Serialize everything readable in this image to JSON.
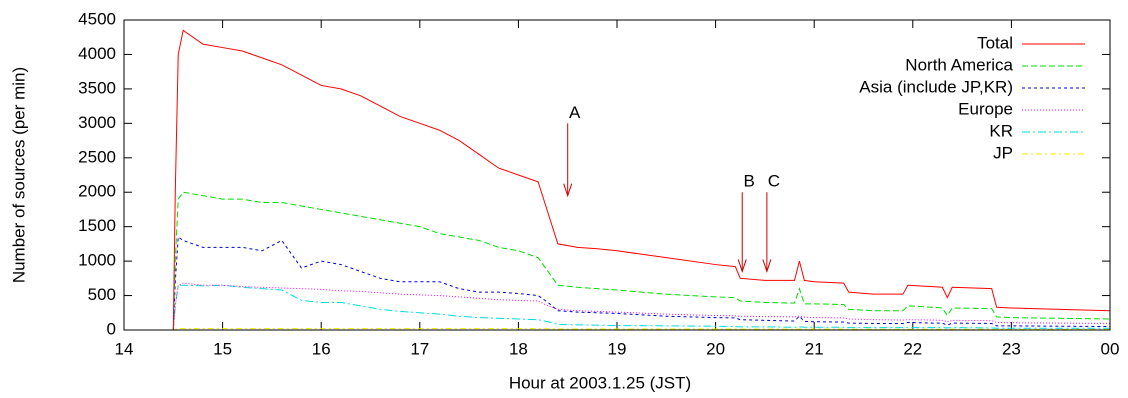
{
  "chart_data": {
    "type": "line",
    "x_label": "Hour at 2003.1.25 (JST)",
    "y_label": "Number of sources (per min)",
    "x": [
      14,
      14.5,
      14.52,
      14.55,
      14.6,
      14.8,
      15.0,
      15.2,
      15.4,
      15.6,
      15.8,
      16.0,
      16.2,
      16.4,
      16.6,
      16.8,
      17.0,
      17.2,
      17.4,
      17.6,
      17.8,
      18.0,
      18.2,
      18.3,
      18.4,
      18.6,
      18.8,
      19.0,
      19.5,
      20.0,
      20.2,
      20.25,
      20.5,
      20.8,
      20.85,
      20.9,
      21.0,
      21.3,
      21.35,
      21.6,
      21.9,
      21.95,
      22.2,
      22.3,
      22.35,
      22.4,
      22.8,
      22.85,
      23.0,
      23.5,
      24.0
    ],
    "series": [
      {
        "name": "Total",
        "color": "#ff0000",
        "dash": "",
        "values": [
          0,
          0,
          2000,
          4000,
          4350,
          4150,
          4100,
          4050,
          3950,
          3850,
          3700,
          3550,
          3500,
          3400,
          3250,
          3100,
          3000,
          2900,
          2750,
          2550,
          2350,
          2250,
          2150,
          1700,
          1250,
          1200,
          1180,
          1150,
          1050,
          950,
          920,
          750,
          720,
          720,
          1000,
          720,
          700,
          680,
          550,
          520,
          520,
          650,
          630,
          620,
          470,
          620,
          600,
          330,
          320,
          300,
          280
        ]
      },
      {
        "name": "North America",
        "color": "#00dd00",
        "dash": "6,3",
        "values": [
          0,
          0,
          1000,
          1900,
          2000,
          1950,
          1900,
          1900,
          1850,
          1850,
          1800,
          1750,
          1700,
          1650,
          1600,
          1550,
          1500,
          1400,
          1350,
          1300,
          1200,
          1150,
          1050,
          850,
          650,
          620,
          600,
          580,
          520,
          480,
          470,
          420,
          400,
          390,
          600,
          380,
          380,
          370,
          300,
          280,
          280,
          350,
          330,
          320,
          210,
          320,
          310,
          190,
          180,
          170,
          160
        ]
      },
      {
        "name": "Asia (include JP,KR)",
        "color": "#0000dd",
        "dash": "3,3",
        "values": [
          0,
          0,
          700,
          1350,
          1300,
          1200,
          1200,
          1200,
          1150,
          1300,
          900,
          1000,
          950,
          850,
          750,
          700,
          700,
          700,
          600,
          550,
          550,
          530,
          500,
          400,
          280,
          260,
          250,
          240,
          200,
          180,
          175,
          150,
          140,
          130,
          200,
          125,
          120,
          115,
          100,
          95,
          95,
          110,
          100,
          100,
          70,
          100,
          95,
          60,
          60,
          55,
          50
        ]
      },
      {
        "name": "Europe",
        "color": "#ff00ff",
        "dash": "1,2",
        "values": [
          0,
          0,
          350,
          650,
          680,
          650,
          650,
          630,
          620,
          610,
          600,
          590,
          570,
          560,
          540,
          520,
          510,
          500,
          480,
          460,
          440,
          430,
          420,
          350,
          300,
          280,
          270,
          260,
          230,
          210,
          205,
          200,
          195,
          190,
          200,
          185,
          180,
          175,
          160,
          150,
          145,
          150,
          145,
          140,
          120,
          140,
          135,
          110,
          105,
          100,
          95
        ]
      },
      {
        "name": "KR",
        "color": "#00dddd",
        "dash": "8,3,2,3",
        "values": [
          0,
          0,
          350,
          650,
          650,
          640,
          650,
          620,
          600,
          580,
          430,
          400,
          400,
          350,
          300,
          270,
          250,
          230,
          200,
          180,
          170,
          160,
          150,
          120,
          80,
          75,
          70,
          65,
          60,
          55,
          50,
          45,
          45,
          40,
          45,
          40,
          40,
          40,
          35,
          35,
          35,
          35,
          35,
          35,
          30,
          35,
          30,
          25,
          25,
          25,
          25
        ]
      },
      {
        "name": "JP",
        "color": "#eeee00",
        "dash": "6,3,2,3",
        "values": [
          0,
          0,
          10,
          20,
          20,
          20,
          20,
          20,
          20,
          20,
          20,
          20,
          20,
          20,
          20,
          20,
          20,
          20,
          20,
          20,
          20,
          20,
          20,
          18,
          15,
          15,
          15,
          15,
          15,
          15,
          15,
          12,
          12,
          12,
          12,
          12,
          12,
          12,
          10,
          10,
          10,
          10,
          10,
          10,
          10,
          10,
          10,
          8,
          8,
          8,
          8
        ]
      }
    ],
    "annotations": [
      {
        "text": "A",
        "x": 18.5,
        "y_from": 3000,
        "y_to": 1950
      },
      {
        "text": "B",
        "x": 20.27,
        "y_from": 2000,
        "y_to": 850
      },
      {
        "text": "C",
        "x": 20.52,
        "y_from": 2000,
        "y_to": 850
      }
    ],
    "xlim": [
      14,
      24
    ],
    "xticks": [
      14,
      15,
      16,
      17,
      18,
      19,
      20,
      21,
      22,
      23,
      {
        "value": 24,
        "label": "00"
      }
    ],
    "ylim": [
      0,
      4500
    ],
    "yticks": [
      0,
      500,
      1000,
      1500,
      2000,
      2500,
      3000,
      3500,
      4000,
      4500
    ],
    "grid": false,
    "legend": "top-right"
  }
}
